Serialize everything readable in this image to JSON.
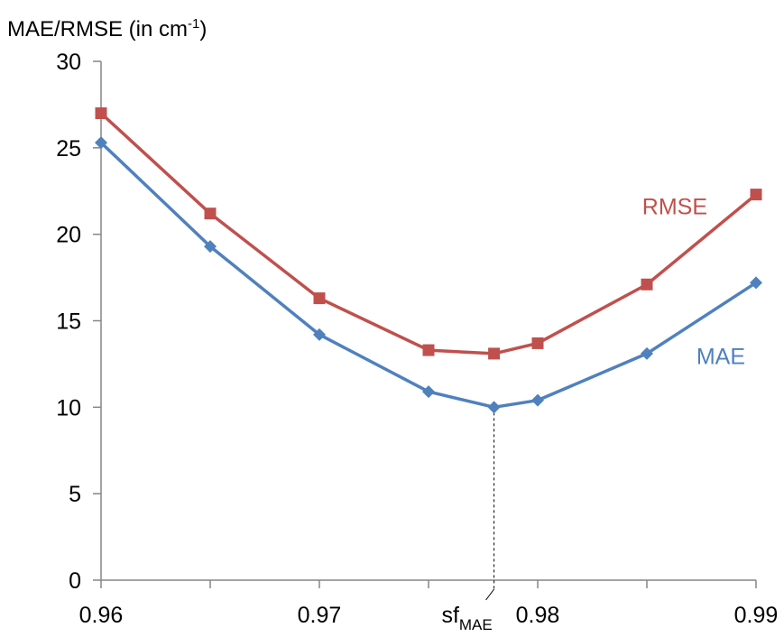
{
  "chart_data": {
    "type": "line",
    "title": "MAE/RMSE (in cm",
    "title_sup": "-1",
    "title_end": ")",
    "xlim": [
      0.96,
      0.99
    ],
    "ylim": [
      0,
      30
    ],
    "x_ticks": [
      "0.96",
      "0.97",
      "0.98",
      "0.99"
    ],
    "y_ticks": [
      "0",
      "5",
      "10",
      "15",
      "20",
      "25",
      "30"
    ],
    "grid": false,
    "series": [
      {
        "name": "RMSE",
        "color": "#C0504D",
        "marker": "square",
        "x": [
          0.96,
          0.965,
          0.97,
          0.975,
          0.978,
          0.98,
          0.985,
          0.99
        ],
        "y": [
          27.0,
          21.2,
          16.3,
          13.3,
          13.1,
          13.7,
          17.1,
          22.3
        ]
      },
      {
        "name": "MAE",
        "color": "#4F81BD",
        "marker": "diamond",
        "x": [
          0.96,
          0.965,
          0.97,
          0.975,
          0.978,
          0.98,
          0.985,
          0.99
        ],
        "y": [
          25.3,
          19.3,
          14.2,
          10.9,
          10.0,
          10.4,
          13.1,
          17.2
        ]
      }
    ],
    "annotation": {
      "text": "sf",
      "subscript": "MAE",
      "x": 0.978
    }
  }
}
